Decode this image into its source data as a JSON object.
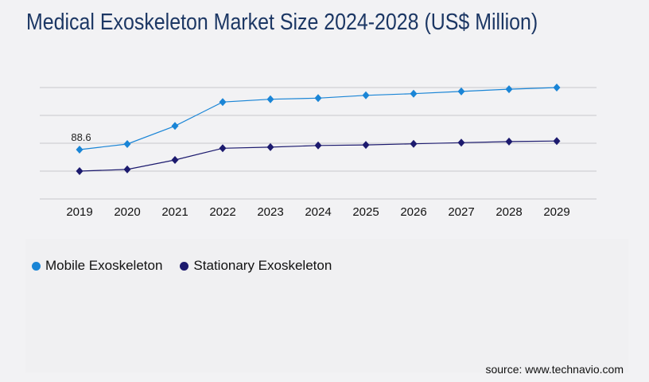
{
  "chart_data": {
    "type": "line",
    "title": "Medical Exoskeleton Market Size 2024-2028 (US$ Million)",
    "xlabel": "",
    "ylabel": "",
    "x": [
      "2019",
      "2020",
      "2021",
      "2022",
      "2023",
      "2024",
      "2025",
      "2026",
      "2027",
      "2028",
      "2029"
    ],
    "ylim": [
      0,
      200
    ],
    "grid": true,
    "legend_position": "bottom-left",
    "series": [
      {
        "name": "Mobile Exoskeleton",
        "color": "#1a85d6",
        "values": [
          88.6,
          98.6,
          131,
          174,
          179,
          181,
          186,
          189,
          193,
          197,
          200
        ]
      },
      {
        "name": "Stationary Exoskeleton",
        "color": "#1c1a6e",
        "values": [
          50,
          53,
          70,
          91,
          93,
          96,
          97,
          99,
          101,
          103,
          104
        ]
      }
    ],
    "annotations": [
      {
        "series": 0,
        "index": 0,
        "text": "88.6"
      }
    ]
  },
  "source": "source: www.technavio.com"
}
